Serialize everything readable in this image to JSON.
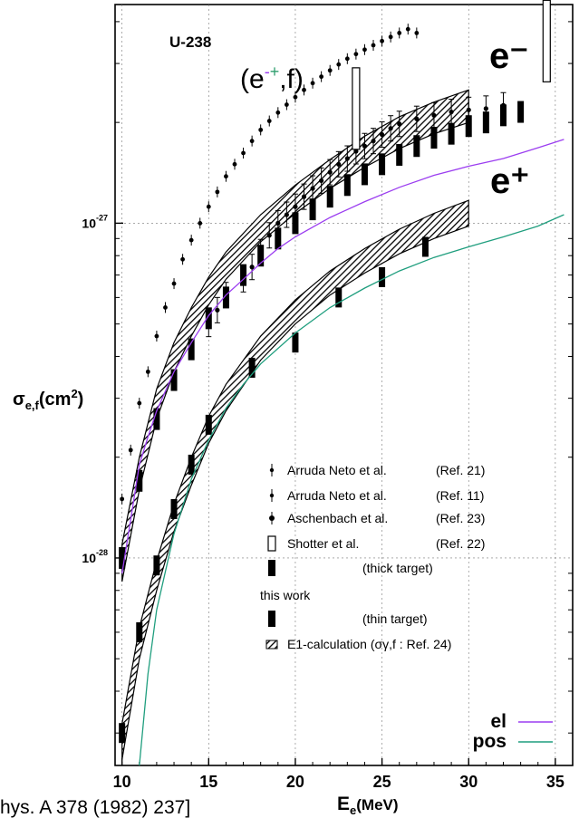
{
  "chart_data": {
    "type": "scatter",
    "nucleus": "U-238",
    "reaction": "(e⁻⁺,f)",
    "reaction_base": "(e",
    "reaction_minus": "-",
    "reaction_plus": "+",
    "reaction_tail": ",f)",
    "curve_labels": {
      "electron": "e⁻",
      "positron": "e⁺"
    },
    "xlabel": "Eₑ(MeV)",
    "ylabel": "σₑ,ₒ(cm²)",
    "ylabel_main": "σ",
    "ylabel_sub": "e,f",
    "ylabel_unit": "(cm",
    "ylabel_sup": "2",
    "ylabel_close": ")",
    "xlabel_main": "E",
    "xlabel_sub": "e",
    "xlabel_unit": "(MeV)",
    "x_ticks": [
      "10",
      "15",
      "20",
      "25",
      "30",
      "35"
    ],
    "y_ticks": [
      "10⁻²⁸",
      "10⁻²⁷"
    ],
    "y_tick_base": "10",
    "y_tick_exps": [
      "-28",
      "-27"
    ],
    "xlim": [
      9.6,
      36
    ],
    "ylim": [
      2.4e-29,
      4.5e-27
    ],
    "yscale": "log",
    "grid": "dashed",
    "citation": "hys. A 378 (1982) 237]",
    "legend": [
      {
        "label": "Arruda Neto et al.",
        "ref": "(Ref. 21)"
      },
      {
        "label": "Arruda Neto et al.",
        "ref": "(Ref. 11)"
      },
      {
        "label": "Aschenbach et al.",
        "ref": "(Ref. 23)"
      },
      {
        "label": "Shotter et al.",
        "ref": "(Ref. 22)"
      },
      {
        "label": "(thick target)",
        "ref": ""
      },
      {
        "label": "this work",
        "ref": ""
      },
      {
        "label": "(thin target)",
        "ref": ""
      },
      {
        "label": "E1-calculation (σγ,f : Ref. 24)",
        "ref": ""
      }
    ],
    "overlay_legend": [
      {
        "name": "el",
        "color": "#f030c8",
        "line_color": "#9b3df0"
      },
      {
        "name": "pos",
        "color": "#2e9e6e",
        "line_color": "#1f9e7e"
      }
    ],
    "series": [
      {
        "name": "el",
        "color": "#9b3df0",
        "x": [
          10,
          10.5,
          11,
          11.5,
          12,
          13,
          14,
          15,
          16,
          17,
          18,
          19,
          20,
          22,
          24,
          26,
          28,
          30,
          32,
          34,
          35.5
        ],
        "y": [
          9e-29,
          1.3e-28,
          1.9e-28,
          2.3e-28,
          2.75e-28,
          3.6e-28,
          4.4e-28,
          5.3e-28,
          6.1e-28,
          6.8e-28,
          7.6e-28,
          8.4e-28,
          9.1e-28,
          1.04e-27,
          1.16e-27,
          1.28e-27,
          1.39e-27,
          1.48e-27,
          1.56e-27,
          1.68e-27,
          1.78e-27
        ]
      },
      {
        "name": "pos",
        "color": "#1f9e7e",
        "x": [
          11,
          11.5,
          12,
          13,
          14,
          15,
          16,
          17,
          18,
          20,
          22,
          24,
          26,
          28,
          30,
          32,
          34,
          35.5
        ],
        "y": [
          2.4e-29,
          4.5e-29,
          7e-29,
          1.18e-28,
          1.72e-28,
          2.25e-28,
          2.8e-28,
          3.3e-28,
          3.8e-28,
          4.7e-28,
          5.6e-28,
          6.4e-28,
          7.2e-28,
          7.9e-28,
          8.5e-28,
          9.1e-28,
          9.8e-28,
          1.06e-27
        ]
      }
    ],
    "bands": [
      {
        "name": "e-",
        "x": [
          10,
          11,
          12,
          13,
          14,
          15,
          16,
          18,
          20,
          22,
          24,
          26,
          28,
          30
        ],
        "low": [
          8.5e-29,
          1.6e-28,
          2.6e-28,
          3.6e-28,
          4.6e-28,
          5.7e-28,
          6.8e-28,
          8.8e-28,
          1.07e-27,
          1.27e-27,
          1.47e-27,
          1.67e-27,
          1.85e-27,
          2e-27
        ],
        "high": [
          1.1e-28,
          2e-28,
          3.2e-28,
          4.4e-28,
          5.6e-28,
          6.9e-28,
          8.2e-28,
          1.06e-27,
          1.3e-27,
          1.55e-27,
          1.82e-27,
          2.08e-27,
          2.3e-27,
          2.5e-27
        ]
      },
      {
        "name": "e+",
        "x": [
          10,
          11,
          12,
          13,
          14,
          15,
          16,
          18,
          20,
          22,
          24,
          26,
          28,
          30
        ],
        "low": [
          2.5e-29,
          5e-29,
          8e-29,
          1.2e-28,
          1.65e-28,
          2.2e-28,
          2.75e-28,
          3.9e-28,
          5e-28,
          6.1e-28,
          7.1e-28,
          8.1e-28,
          9e-28,
          9.8e-28
        ],
        "high": [
          3.2e-29,
          6.2e-29,
          9.8e-29,
          1.45e-28,
          2e-28,
          2.65e-28,
          3.3e-28,
          4.6e-28,
          5.9e-28,
          7.2e-28,
          8.4e-28,
          9.6e-28,
          1.07e-27,
          1.17e-27
        ]
      }
    ],
    "points_ref21": {
      "x": [
        10,
        10.5,
        11,
        11.5,
        12,
        12.5,
        13,
        13.5,
        14,
        14.5,
        15,
        15.5,
        16,
        16.5,
        17,
        17.5,
        18,
        18.5,
        19,
        19.5,
        20,
        20.5,
        21,
        21.5,
        22,
        22.5,
        23,
        23.5,
        24,
        24.5,
        25,
        25.5,
        26,
        26.5,
        27
      ],
      "y": [
        1.5e-28,
        2.1e-28,
        2.9e-28,
        3.6e-28,
        4.6e-28,
        5.6e-28,
        6.6e-28,
        7.8e-28,
        8.9e-28,
        1e-27,
        1.12e-27,
        1.24e-27,
        1.38e-27,
        1.5e-27,
        1.62e-27,
        1.76e-27,
        1.9e-27,
        2.02e-27,
        2.14e-27,
        2.26e-27,
        2.38e-27,
        2.5e-27,
        2.62e-27,
        2.74e-27,
        2.86e-27,
        2.98e-27,
        3.1e-27,
        3.2e-27,
        3.3e-27,
        3.4e-27,
        3.5e-27,
        3.6e-27,
        3.7e-27,
        3.8e-27,
        3.7e-27
      ]
    },
    "points_ref23": {
      "x": [
        15,
        15.5,
        16,
        17,
        17.5,
        18,
        18.5,
        19,
        19.5,
        20,
        20.5,
        21,
        21.5,
        22,
        22.5,
        23,
        23.5,
        24,
        24.5,
        25,
        25.5,
        26,
        27,
        28,
        29,
        30,
        31,
        32
      ],
      "y": [
        5e-28,
        5.5e-28,
        6.1e-28,
        6.8e-28,
        7.4e-28,
        8.2e-28,
        9.2e-28,
        1e-27,
        1.06e-27,
        1.12e-27,
        1.2e-27,
        1.27e-27,
        1.34e-27,
        1.42e-27,
        1.5e-27,
        1.56e-27,
        1.64e-27,
        1.7e-27,
        1.76e-27,
        1.84e-27,
        1.92e-27,
        1.98e-27,
        2.05e-27,
        2.1e-27,
        2.15e-27,
        2.18e-27,
        2.2e-27,
        2.25e-27
      ]
    },
    "thick_target": {
      "x": [
        10,
        11,
        12,
        13,
        14,
        15,
        16,
        17,
        18,
        19,
        20,
        21,
        22,
        23,
        24,
        25,
        26,
        27,
        28,
        29,
        30,
        31,
        32,
        33
      ],
      "y": [
        1e-28,
        1.7e-28,
        2.6e-28,
        3.4e-28,
        4.2e-28,
        5.2e-28,
        6e-28,
        7e-28,
        8e-28,
        9e-28,
        1e-27,
        1.1e-27,
        1.2e-27,
        1.3e-27,
        1.4e-27,
        1.5e-27,
        1.6e-27,
        1.7e-27,
        1.8e-27,
        1.85e-27,
        1.95e-27,
        2e-27,
        2.1e-27,
        2.15e-27
      ]
    },
    "thin_target": {
      "x": [
        10,
        11,
        12,
        13,
        14,
        15,
        17.5,
        20,
        22.5,
        25,
        27.5
      ],
      "y": [
        3e-29,
        6e-29,
        9.5e-29,
        1.4e-28,
        1.9e-28,
        2.5e-28,
        3.7e-28,
        4.4e-28,
        6e-28,
        6.9e-28,
        8.5e-28
      ]
    },
    "shotter": {
      "x": [
        34.5,
        23.5
      ],
      "y": [
        3.5e-27,
        2.2e-27
      ]
    }
  }
}
